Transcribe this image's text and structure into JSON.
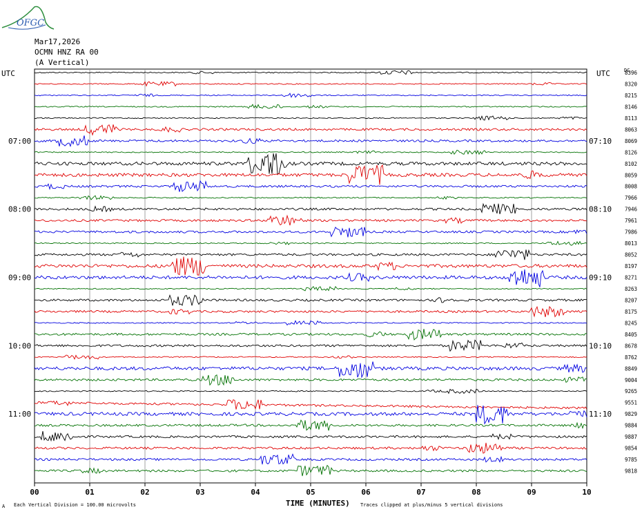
{
  "logo": {
    "text": "OFGC",
    "color": "#2f8f3f"
  },
  "header": {
    "date": "Mar17,2026",
    "station": "OCMN HNZ RA 00",
    "component": "(A Vertical)"
  },
  "axis": {
    "left_title": "UTC",
    "right_title": "UTC",
    "right_corner": "DC",
    "xlabel": "TIME (MINUTES)",
    "scale_note": "Each Vertical Division =  100.00 microvolts",
    "clip_note": "Traces clipped at plus/minus 5 vertical divisions",
    "corner_mark": "A"
  },
  "chart_data": {
    "type": "line",
    "title": "",
    "x_ticks": [
      "00",
      "01",
      "02",
      "03",
      "04",
      "05",
      "06",
      "07",
      "08",
      "09",
      "10"
    ],
    "xlim": [
      0,
      10
    ],
    "trace_minutes_each": 10,
    "colors": [
      "#000000",
      "#e00000",
      "#0000e0",
      "#007000"
    ],
    "left_time_labels": [
      {
        "row": 6,
        "label": "07:00"
      },
      {
        "row": 12,
        "label": "08:00"
      },
      {
        "row": 18,
        "label": "09:00"
      },
      {
        "row": 24,
        "label": "10:00"
      },
      {
        "row": 30,
        "label": "11:00"
      }
    ],
    "right_time_labels": [
      {
        "row": 6,
        "label": "07:10"
      },
      {
        "row": 12,
        "label": "08:10"
      },
      {
        "row": 18,
        "label": "09:10"
      },
      {
        "row": 24,
        "label": "10:10"
      },
      {
        "row": 30,
        "label": "11:10"
      }
    ],
    "dc_offsets": [
      "8396",
      "8320",
      "8215",
      "8146",
      "8113",
      "8063",
      "8069",
      "8126",
      "8102",
      "8059",
      "8008",
      "7966",
      "7946",
      "7961",
      "7986",
      "8013",
      "8052",
      "8197",
      "8271",
      "8263",
      "8207",
      "8175",
      "8245",
      "8405",
      "8678",
      "8762",
      "8849",
      "9004",
      "9265",
      "9551",
      "9829",
      "9884",
      "9887",
      "9854",
      "9785",
      "9818"
    ],
    "activity": [
      1,
      1,
      1,
      1,
      1,
      2,
      2,
      1,
      3,
      3,
      2,
      1,
      2,
      2,
      2,
      1,
      2,
      3,
      3,
      1,
      2,
      2,
      1,
      2,
      2,
      1,
      3,
      2,
      1,
      2,
      3,
      2,
      2,
      2,
      2,
      2
    ]
  }
}
